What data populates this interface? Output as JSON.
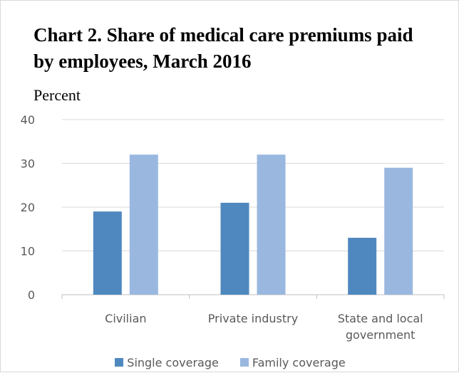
{
  "chart_data": {
    "type": "bar",
    "title": "Chart 2. Share of medical care premiums paid by employees, March 2016",
    "ylabel": "Percent",
    "xlabel": "",
    "ylim": [
      0,
      40
    ],
    "yticks": [
      0,
      10,
      20,
      30,
      40
    ],
    "grid": true,
    "legend_position": "bottom",
    "categories": [
      [
        "Civilian"
      ],
      [
        "Private industry"
      ],
      [
        "State and local",
        "government"
      ]
    ],
    "series": [
      {
        "name": "Single coverage",
        "color": "#4f88bf",
        "values": [
          19,
          21,
          13
        ]
      },
      {
        "name": "Family coverage",
        "color": "#9ab8df",
        "values": [
          32,
          32,
          29
        ]
      }
    ]
  }
}
